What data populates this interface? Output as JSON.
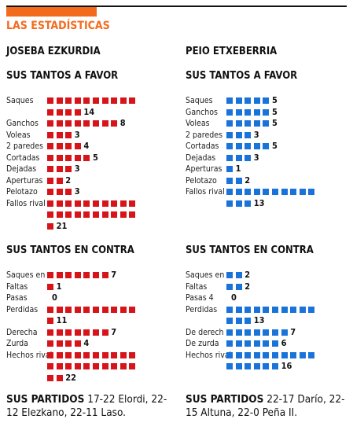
{
  "header": {
    "title": "LAS ESTADÍSTICAS"
  },
  "players": [
    {
      "name": "JOSEBA EZKURDIA",
      "color": "#d7141a",
      "favor": {
        "heading": "SUS TANTOS A FAVOR",
        "rows": [
          {
            "label": "Saques",
            "value": 14
          },
          {
            "label": "Ganchos",
            "value": 8
          },
          {
            "label": "Voleas",
            "value": 3
          },
          {
            "label": "2 paredes",
            "value": 4
          },
          {
            "label": "Cortadas",
            "value": 5
          },
          {
            "label": "Dejadas",
            "value": 3
          },
          {
            "label": "Aperturas",
            "value": 2
          },
          {
            "label": "Pelotazo",
            "value": 3
          },
          {
            "label": "Fallos rival",
            "value": 21
          }
        ]
      },
      "contra": {
        "heading": "SUS TANTOS EN CONTRA",
        "rows": [
          {
            "label": "Saques en",
            "value": 7
          },
          {
            "label": "Faltas",
            "value": 1
          },
          {
            "label": "Pasas",
            "value": 0
          },
          {
            "label": "Perdidas",
            "value": 11
          },
          {
            "label": "Derecha",
            "value": 7
          },
          {
            "label": "Zurda",
            "value": 4
          },
          {
            "label": "Hechos rival",
            "value": 22
          }
        ]
      },
      "matches": {
        "heading": "SUS PARTIDOS",
        "text": "17-22 Elordi, 22-12 Elezkano, 22-11 Laso."
      }
    },
    {
      "name": "PEIO ETXEBERRIA",
      "color": "#1a73d9",
      "favor": {
        "heading": "SUS TANTOS A FAVOR",
        "rows": [
          {
            "label": "Saques",
            "value": 5
          },
          {
            "label": "Ganchos",
            "value": 5
          },
          {
            "label": "Voleas",
            "value": 5
          },
          {
            "label": "2 paredes",
            "value": 3
          },
          {
            "label": "Cortadas",
            "value": 5
          },
          {
            "label": "Dejadas",
            "value": 3
          },
          {
            "label": "Aperturas",
            "value": 1
          },
          {
            "label": "Pelotazo",
            "value": 2
          },
          {
            "label": "Fallos rival",
            "value": 13
          }
        ]
      },
      "contra": {
        "heading": "SUS TANTOS EN CONTRA",
        "rows": [
          {
            "label": "Saques en",
            "value": 2
          },
          {
            "label": "Faltas",
            "value": 2
          },
          {
            "label": "Pasas 4",
            "value": 0
          },
          {
            "label": "Perdidas",
            "value": 13
          },
          {
            "label": "De derech",
            "value": 7
          },
          {
            "label": "De zurda",
            "value": 6
          },
          {
            "label": "Hechos rival",
            "value": 16
          }
        ]
      },
      "matches": {
        "heading": "SUS PARTIDOS",
        "text": "22-17 Darío, 22-15 Altuna, 22-0 Peña II."
      }
    }
  ]
}
